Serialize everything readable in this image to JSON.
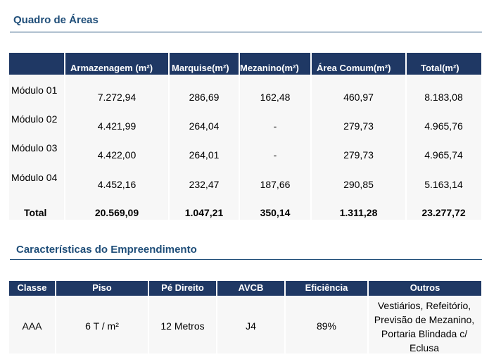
{
  "section1_title": "Quadro de Áreas",
  "areas": {
    "headers": [
      "Armazenagem (m²)",
      "Marquise(m²)",
      "Mezanino(m²)",
      "Área Comum(m²)",
      "Total(m²)"
    ],
    "rows": [
      {
        "label": "Módulo 01",
        "values": [
          "7.272,94",
          "286,69",
          "162,48",
          "460,97",
          "8.183,08"
        ]
      },
      {
        "label": "Módulo 02",
        "values": [
          "4.421,99",
          "264,04",
          "-",
          "279,73",
          "4.965,76"
        ]
      },
      {
        "label": "Módulo 03",
        "values": [
          "4.422,00",
          "264,01",
          "-",
          "279,73",
          "4.965,74"
        ]
      },
      {
        "label": "Módulo 04",
        "values": [
          "4.452,16",
          "232,47",
          "187,66",
          "290,85",
          "5.163,14"
        ]
      }
    ],
    "total": {
      "label": "Total",
      "values": [
        "20.569,09",
        "1.047,21",
        "350,14",
        "1.311,28",
        "23.277,72"
      ]
    }
  },
  "section2_title": "Características do Empreendimento",
  "characteristics": {
    "headers": [
      "Classe",
      "Piso",
      "Pé Direito",
      "AVCB",
      "Eficiência",
      "Outros"
    ],
    "values": [
      "AAA",
      "6 T / m²",
      "12 Metros",
      "J4",
      "89%"
    ],
    "outros_lines": [
      "Vestiários, Refeitório,",
      "Previsão de Mezanino,",
      "Portaria Blindada c/",
      "Eclusa"
    ]
  }
}
